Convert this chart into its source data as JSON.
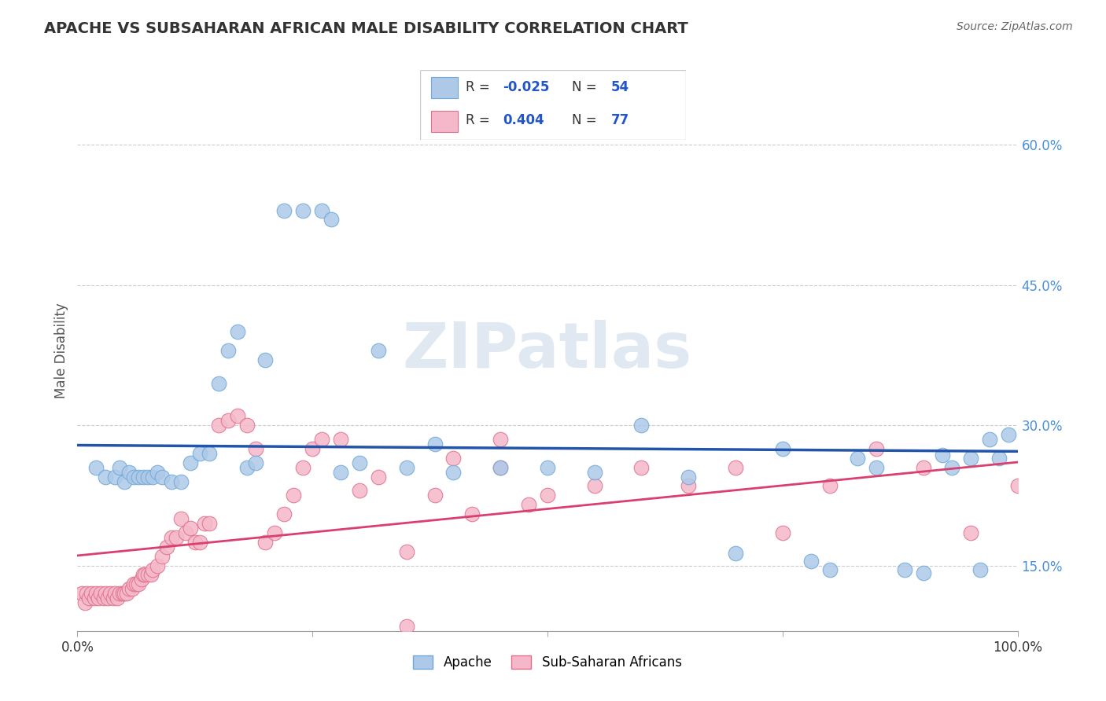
{
  "title": "APACHE VS SUBSAHARAN AFRICAN MALE DISABILITY CORRELATION CHART",
  "source": "Source: ZipAtlas.com",
  "ylabel": "Male Disability",
  "y_ticks": [
    0.15,
    0.3,
    0.45,
    0.6
  ],
  "y_tick_labels": [
    "15.0%",
    "30.0%",
    "45.0%",
    "60.0%"
  ],
  "xlim": [
    0.0,
    1.0
  ],
  "ylim": [
    0.08,
    0.68
  ],
  "apache_R": -0.025,
  "apache_N": 54,
  "subsaharan_R": 0.404,
  "subsaharan_N": 77,
  "apache_color": "#aec9e8",
  "apache_edge": "#6ea8d8",
  "subsaharan_color": "#f5b8cb",
  "subsaharan_edge": "#e0708a",
  "trend_apache_color": "#2255aa",
  "trend_subsaharan_color": "#d94070",
  "watermark": "ZIPatlas",
  "watermark_color": "#c8d8e8",
  "apache_x": [
    0.02,
    0.03,
    0.04,
    0.045,
    0.05,
    0.055,
    0.06,
    0.065,
    0.07,
    0.075,
    0.08,
    0.085,
    0.09,
    0.1,
    0.11,
    0.12,
    0.13,
    0.14,
    0.15,
    0.16,
    0.17,
    0.18,
    0.19,
    0.2,
    0.22,
    0.24,
    0.26,
    0.27,
    0.28,
    0.3,
    0.32,
    0.35,
    0.38,
    0.4,
    0.45,
    0.5,
    0.55,
    0.6,
    0.65,
    0.7,
    0.75,
    0.78,
    0.8,
    0.83,
    0.85,
    0.88,
    0.9,
    0.92,
    0.93,
    0.95,
    0.96,
    0.97,
    0.98,
    0.99
  ],
  "apache_y": [
    0.255,
    0.245,
    0.245,
    0.255,
    0.24,
    0.25,
    0.245,
    0.245,
    0.245,
    0.245,
    0.245,
    0.25,
    0.245,
    0.24,
    0.24,
    0.26,
    0.27,
    0.27,
    0.345,
    0.38,
    0.4,
    0.255,
    0.26,
    0.37,
    0.53,
    0.53,
    0.53,
    0.52,
    0.25,
    0.26,
    0.38,
    0.255,
    0.28,
    0.25,
    0.255,
    0.255,
    0.25,
    0.3,
    0.245,
    0.163,
    0.275,
    0.155,
    0.145,
    0.265,
    0.255,
    0.145,
    0.142,
    0.268,
    0.255,
    0.265,
    0.145,
    0.285,
    0.265,
    0.29
  ],
  "subsaharan_x": [
    0.005,
    0.008,
    0.01,
    0.012,
    0.015,
    0.018,
    0.02,
    0.022,
    0.025,
    0.028,
    0.03,
    0.032,
    0.035,
    0.038,
    0.04,
    0.042,
    0.045,
    0.048,
    0.05,
    0.052,
    0.055,
    0.058,
    0.06,
    0.062,
    0.065,
    0.068,
    0.07,
    0.072,
    0.075,
    0.078,
    0.08,
    0.085,
    0.09,
    0.095,
    0.1,
    0.105,
    0.11,
    0.115,
    0.12,
    0.125,
    0.13,
    0.135,
    0.14,
    0.15,
    0.16,
    0.17,
    0.18,
    0.19,
    0.2,
    0.21,
    0.22,
    0.23,
    0.24,
    0.25,
    0.26,
    0.28,
    0.3,
    0.32,
    0.35,
    0.38,
    0.4,
    0.42,
    0.45,
    0.48,
    0.5,
    0.55,
    0.6,
    0.65,
    0.7,
    0.75,
    0.8,
    0.85,
    0.9,
    0.95,
    1.0,
    0.35,
    0.45
  ],
  "subsaharan_y": [
    0.12,
    0.11,
    0.12,
    0.115,
    0.12,
    0.115,
    0.12,
    0.115,
    0.12,
    0.115,
    0.12,
    0.115,
    0.12,
    0.115,
    0.12,
    0.115,
    0.12,
    0.12,
    0.12,
    0.12,
    0.125,
    0.125,
    0.13,
    0.13,
    0.13,
    0.135,
    0.14,
    0.14,
    0.14,
    0.14,
    0.145,
    0.15,
    0.16,
    0.17,
    0.18,
    0.18,
    0.2,
    0.185,
    0.19,
    0.175,
    0.175,
    0.195,
    0.195,
    0.3,
    0.305,
    0.31,
    0.3,
    0.275,
    0.175,
    0.185,
    0.205,
    0.225,
    0.255,
    0.275,
    0.285,
    0.285,
    0.23,
    0.245,
    0.165,
    0.225,
    0.265,
    0.205,
    0.255,
    0.215,
    0.225,
    0.235,
    0.255,
    0.235,
    0.255,
    0.185,
    0.235,
    0.275,
    0.255,
    0.185,
    0.235,
    0.085,
    0.285
  ]
}
